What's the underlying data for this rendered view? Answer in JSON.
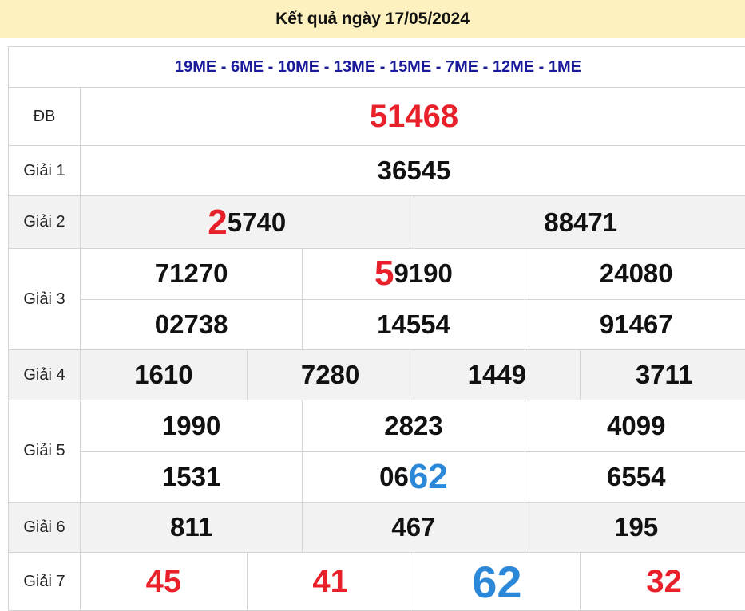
{
  "header": {
    "title": "Kết quả ngày 17/05/2024"
  },
  "codes": "19ME - 6ME - 10ME - 13ME - 15ME - 7ME - 12ME - 1ME",
  "colors": {
    "red": "#e8202a",
    "blue": "#2b88d8",
    "header_bg": "#fdf1bf",
    "codes": "#1a1a9a"
  },
  "rows": [
    {
      "label": "ĐB",
      "items": [
        {
          "pre": "",
          "pre_color": "",
          "text": "51468",
          "color": "#e8202a"
        }
      ]
    },
    {
      "label": "Giải 1",
      "items": [
        {
          "pre": "",
          "text": "36545"
        }
      ]
    },
    {
      "label": "Giải 2",
      "items": [
        {
          "pre": "2",
          "pre_color": "#e8202a",
          "text": "5740"
        },
        {
          "pre": "",
          "text": "88471"
        }
      ]
    },
    {
      "label": "Giải 3",
      "items": [
        {
          "pre": "",
          "text": "71270"
        },
        {
          "pre": "5",
          "pre_color": "#e8202a",
          "text": "9190"
        },
        {
          "pre": "",
          "text": "24080"
        },
        {
          "pre": "",
          "text": "02738"
        },
        {
          "pre": "",
          "text": "14554"
        },
        {
          "pre": "",
          "text": "91467"
        }
      ]
    },
    {
      "label": "Giải 4",
      "items": [
        {
          "pre": "",
          "text": "1610"
        },
        {
          "pre": "",
          "text": "7280"
        },
        {
          "pre": "",
          "text": "1449"
        },
        {
          "pre": "",
          "text": "3711"
        }
      ]
    },
    {
      "label": "Giải 5",
      "items": [
        {
          "pre": "",
          "text": "1990"
        },
        {
          "pre": "",
          "text": "2823"
        },
        {
          "pre": "",
          "text": "4099"
        },
        {
          "pre": "",
          "text": "1531"
        },
        {
          "pre": "",
          "text": "06",
          "post": "62",
          "post_color": "#2b88d8"
        },
        {
          "pre": "",
          "text": "6554"
        }
      ]
    },
    {
      "label": "Giải 6",
      "items": [
        {
          "pre": "",
          "text": "811"
        },
        {
          "pre": "",
          "text": "467"
        },
        {
          "pre": "",
          "text": "195"
        }
      ]
    },
    {
      "label": "Giải 7",
      "items": [
        {
          "pre": "",
          "text": "45",
          "color": "#e8202a"
        },
        {
          "pre": "",
          "text": "41",
          "color": "#e8202a"
        },
        {
          "pre": "",
          "text": "62",
          "color": "#2b88d8",
          "large": true
        },
        {
          "pre": "",
          "text": "32",
          "color": "#e8202a"
        }
      ]
    }
  ]
}
